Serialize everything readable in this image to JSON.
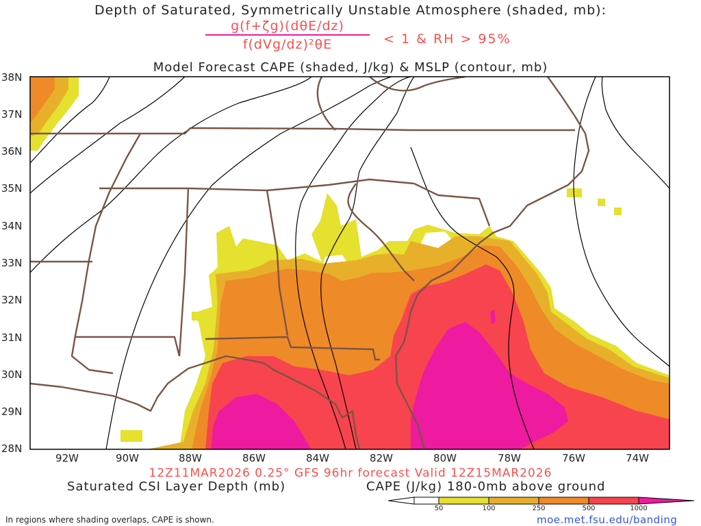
{
  "title_line1": "Depth of Saturated, Symmetrically Unstable Atmosphere (shaded, mb):",
  "formula_numerator": "g(f+ζg)(dθE/dz)",
  "formula_denominator": "f(dVg/dz)²θE",
  "condition": "< 1 & RH > 95%",
  "title_line3": "Model Forecast CAPE (shaded, J/kg) & MSLP (contour, mb)",
  "lat_labels": [
    "38N",
    "37N",
    "36N",
    "35N",
    "34N",
    "33N",
    "32N",
    "31N",
    "30N",
    "29N",
    "28N"
  ],
  "lon_labels": [
    "92W",
    "90W",
    "88W",
    "86W",
    "84W",
    "82W",
    "80W",
    "78W",
    "76W",
    "74W"
  ],
  "run_info": "12Z11MAR2026 0.25° GFS 96hr forecast Valid 12Z15MAR2026",
  "csi_label": "Saturated CSI Layer Depth (mb)",
  "cape_label": "CAPE (J/kg) 180-0mb above ground",
  "colorbar_ticks": [
    "50",
    "100",
    "250",
    "500",
    "1000"
  ],
  "footnote": "In regions where shading overlaps, CAPE is shown.",
  "url": "moe.met.fsu.edu/banding",
  "colors": {
    "cape_50": "#e6e02e",
    "cape_100": "#e8b02a",
    "cape_250": "#ef8a28",
    "cape_500": "#f8444e",
    "cape_1000": "#ee1aa0",
    "borders": "#7a5544",
    "isobars": "#000000",
    "title_accent": "#ff4c4c"
  }
}
